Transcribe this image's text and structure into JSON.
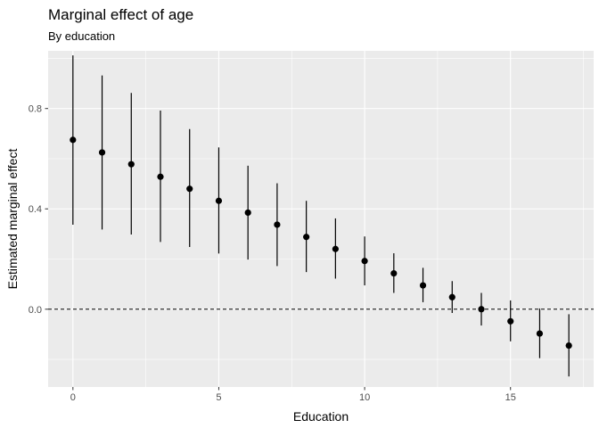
{
  "chart_data": {
    "type": "scatter",
    "title": "Marginal effect of age",
    "subtitle": "By education",
    "xlabel": "Education",
    "ylabel": "Estimated marginal effect",
    "xlim": [
      -0.85,
      17.85
    ],
    "ylim": [
      -0.31,
      1.03
    ],
    "x_ticks": [
      0,
      5,
      10,
      15
    ],
    "x_tick_labels": [
      "0",
      "5",
      "10",
      "15"
    ],
    "y_ticks": [
      0.0,
      0.4,
      0.8
    ],
    "y_tick_labels": [
      "0.0",
      "0.4",
      "0.8"
    ],
    "reference_line": {
      "y": 0,
      "style": "dashed"
    },
    "grid": true,
    "background": "#ebebeb",
    "gridline_color": "#ffffff",
    "point_color": "#000000",
    "series": [
      {
        "x": [
          0,
          1,
          2,
          3,
          4,
          5,
          6,
          7,
          8,
          9,
          10,
          11,
          12,
          13,
          14,
          15,
          16,
          17
        ],
        "y": [
          0.675,
          0.625,
          0.578,
          0.528,
          0.48,
          0.432,
          0.385,
          0.337,
          0.288,
          0.24,
          0.192,
          0.143,
          0.095,
          0.048,
          0.0,
          -0.048,
          -0.097,
          -0.145
        ],
        "lower": [
          0.337,
          0.318,
          0.298,
          0.268,
          0.248,
          0.222,
          0.198,
          0.172,
          0.148,
          0.122,
          0.095,
          0.065,
          0.028,
          -0.015,
          -0.065,
          -0.128,
          -0.195,
          -0.268
        ],
        "upper": [
          1.012,
          0.932,
          0.862,
          0.792,
          0.718,
          0.645,
          0.572,
          0.502,
          0.432,
          0.362,
          0.29,
          0.223,
          0.165,
          0.112,
          0.065,
          0.035,
          0.003,
          -0.02
        ]
      }
    ]
  }
}
